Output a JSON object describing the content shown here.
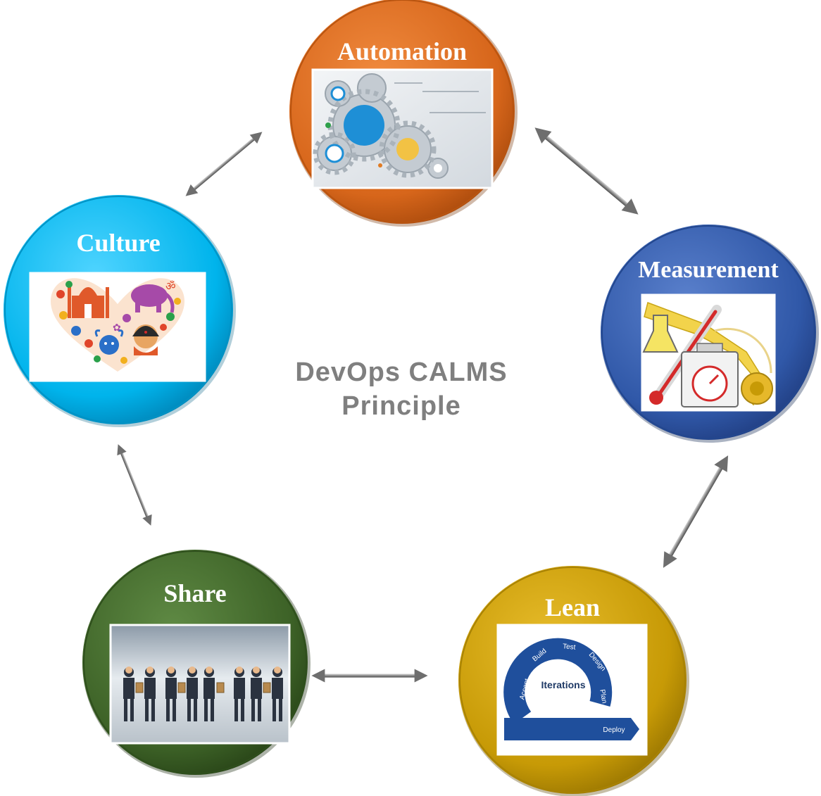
{
  "center_title": {
    "line1": "DevOps CALMS",
    "line2": "Principle"
  },
  "nodes": {
    "automation": {
      "label": "Automation",
      "color": "#d7661b",
      "image": "gears-illustration"
    },
    "culture": {
      "label": "Culture",
      "color": "#00b4ec",
      "image": "india-culture-heart-illustration"
    },
    "measurement": {
      "label": "Measurement",
      "color": "#3058a8",
      "image": "measurement-tools-illustration"
    },
    "lean": {
      "label": "Lean",
      "color": "#c79a06",
      "image": "iterations-cycle-illustration"
    },
    "share": {
      "label": "Share",
      "color": "#3d6227",
      "image": "businessmen-sharing-illustration"
    }
  },
  "lean_cycle": {
    "center": "Iterations",
    "steps": [
      "Accept",
      "Build",
      "Test",
      "Design",
      "Plan",
      "Deploy"
    ]
  },
  "connectors": [
    "automation-culture",
    "automation-measurement",
    "measurement-lean",
    "lean-share",
    "share-culture"
  ]
}
